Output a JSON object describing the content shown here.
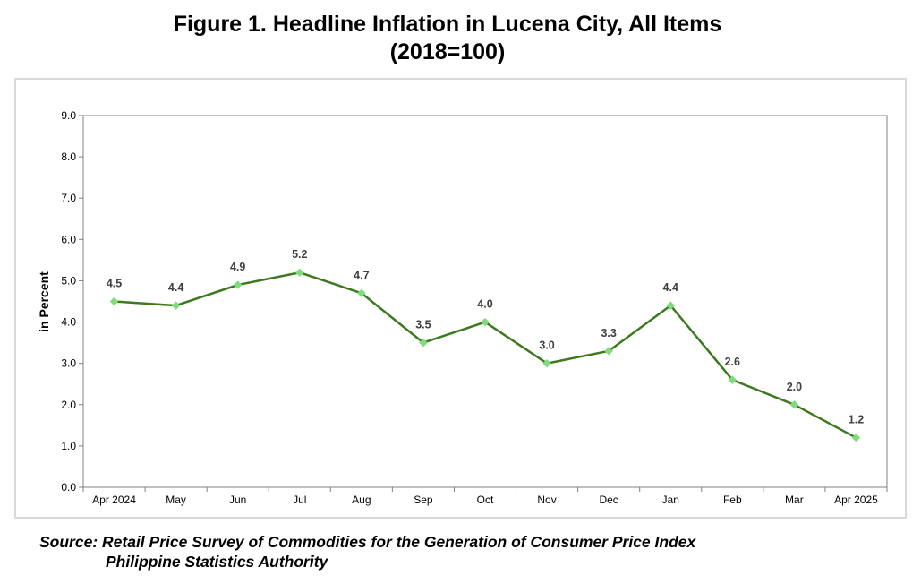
{
  "title_line1": "Figure 1. Headline Inflation in Lucena City, All Items",
  "title_line2": "(2018=100)",
  "source_line1": "Source: Retail Price Survey of Commodities for the Generation of Consumer Price Index",
  "source_line2": "Philippine Statistics Authority",
  "colors": {
    "line": "#3d7a1f",
    "marker": "#7fdc7a",
    "axis": "#808080"
  },
  "chart_data": {
    "type": "line",
    "title": "Figure 1. Headline Inflation in Lucena City, All Items (2018=100)",
    "xlabel": "",
    "ylabel": "in Percent",
    "ylim": [
      0,
      9
    ],
    "yticks": [
      "0.0",
      "1.0",
      "2.0",
      "3.0",
      "4.0",
      "5.0",
      "6.0",
      "7.0",
      "8.0",
      "9.0"
    ],
    "categories": [
      "Apr 2024",
      "May",
      "Jun",
      "Jul",
      "Aug",
      "Sep",
      "Oct",
      "Nov",
      "Dec",
      "Jan",
      "Feb",
      "Mar",
      "Apr 2025"
    ],
    "values": [
      4.5,
      4.4,
      4.9,
      5.2,
      4.7,
      3.5,
      4.0,
      3.0,
      3.3,
      4.4,
      2.6,
      2.0,
      1.2
    ],
    "value_labels": [
      "4.5",
      "4.4",
      "4.9",
      "5.2",
      "4.7",
      "3.5",
      "4.0",
      "3.0",
      "3.3",
      "4.4",
      "2.6",
      "2.0",
      "1.2"
    ],
    "grid": false,
    "legend": "none"
  }
}
